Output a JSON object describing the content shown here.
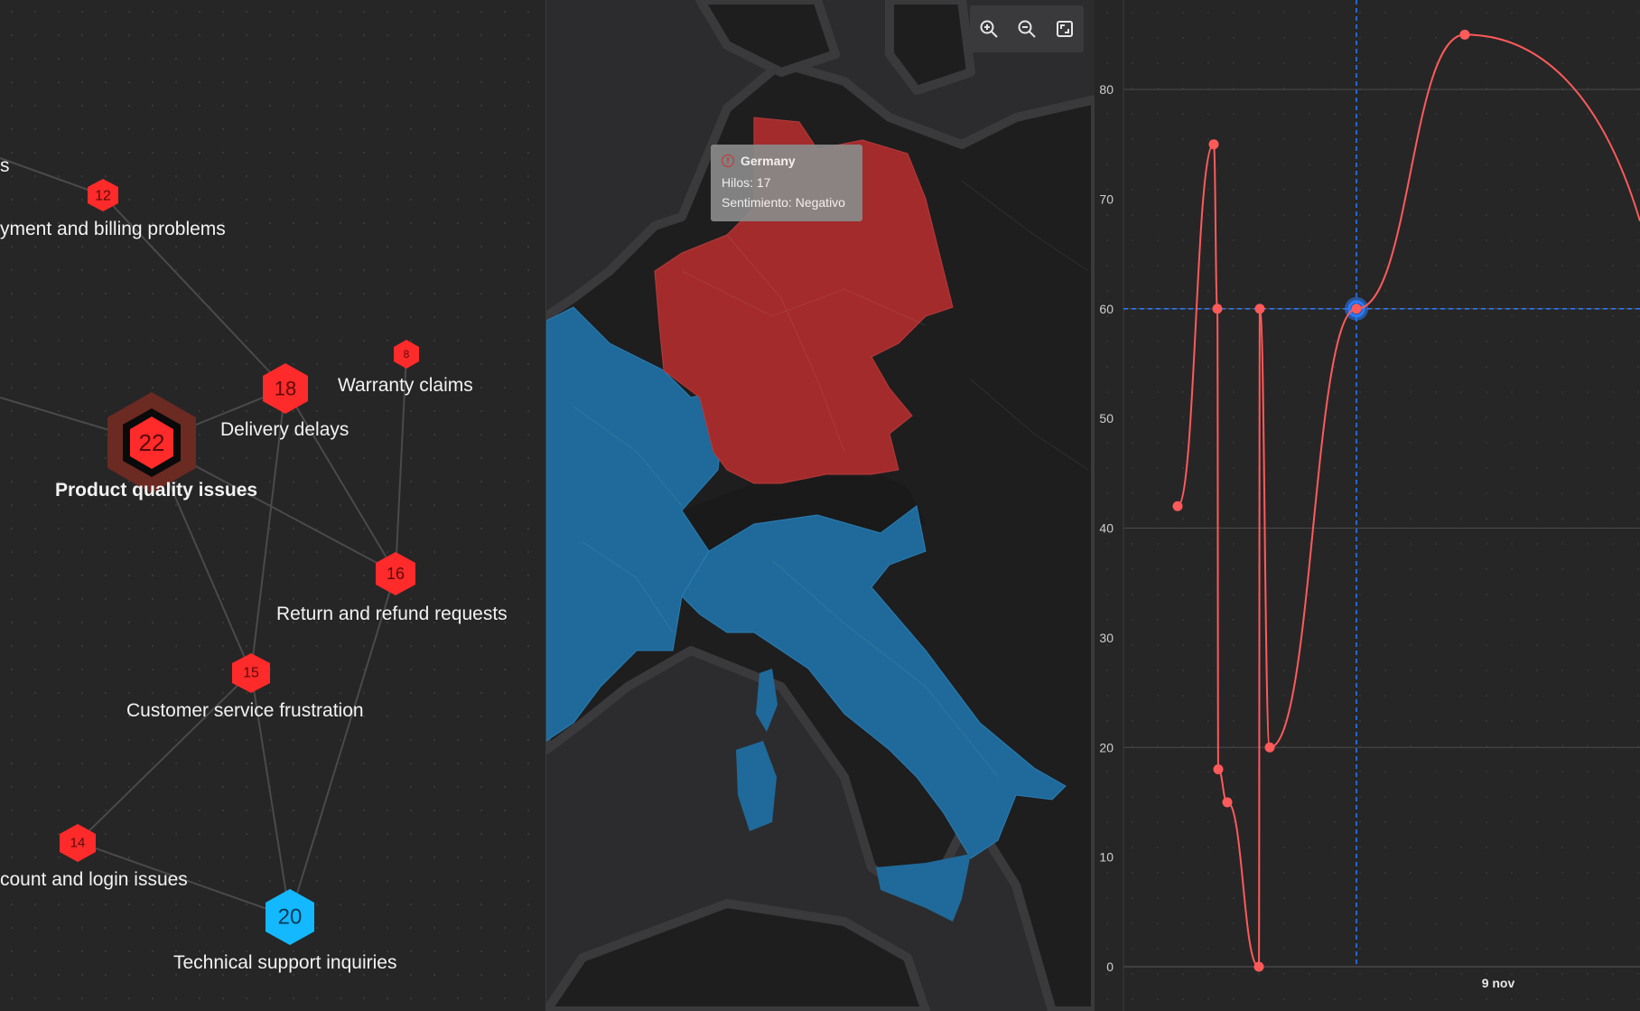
{
  "network": {
    "nodes": [
      {
        "id": "payment",
        "label": "yment and billing problems",
        "count": "12",
        "color": "#ff2a2a"
      },
      {
        "id": "warranty",
        "label": "Warranty claims",
        "count": "8",
        "color": "#ff2a2a"
      },
      {
        "id": "delivery",
        "label": "Delivery delays",
        "count": "18",
        "color": "#ff2a2a"
      },
      {
        "id": "quality",
        "label": "Product quality issues",
        "count": "22",
        "color": "#ff2a2a"
      },
      {
        "id": "refund",
        "label": "Return and refund requests",
        "count": "16",
        "color": "#ff2a2a"
      },
      {
        "id": "service",
        "label": "Customer service frustration",
        "count": "15",
        "color": "#ff2a2a"
      },
      {
        "id": "account",
        "label": "count and login issues",
        "count": "14",
        "color": "#ff2a2a"
      },
      {
        "id": "support",
        "label": "Technical support inquiries",
        "count": "20",
        "color": "#14b8ff"
      }
    ],
    "edge_label_fragment": "s"
  },
  "map": {
    "tooltip": {
      "country": "Germany",
      "threads": "Hilos: 17",
      "sentiment": "Sentimiento: Negativo"
    },
    "colors": {
      "negative": "#a32b2b",
      "positive": "#1f6a9a",
      "land": "#1e1e1f",
      "sea": "#2c2c2e"
    },
    "controls": [
      "zoom-in-icon",
      "zoom-out-icon",
      "fit-icon"
    ]
  },
  "chart_data": {
    "type": "line",
    "title": "",
    "xlabel": "",
    "ylabel": "",
    "y_ticks": [
      "0",
      "10",
      "20",
      "30",
      "40",
      "50",
      "60",
      "70",
      "80"
    ],
    "x_tick_label": "9 nov",
    "ylim": [
      0,
      85
    ],
    "series": [
      {
        "points": [
          42,
          75,
          60,
          18,
          15,
          0,
          60,
          20,
          60,
          85
        ]
      }
    ],
    "crosshair_value": 60,
    "colors": {
      "line": "#ff5a5a",
      "highlight": "#2a7bff"
    }
  }
}
